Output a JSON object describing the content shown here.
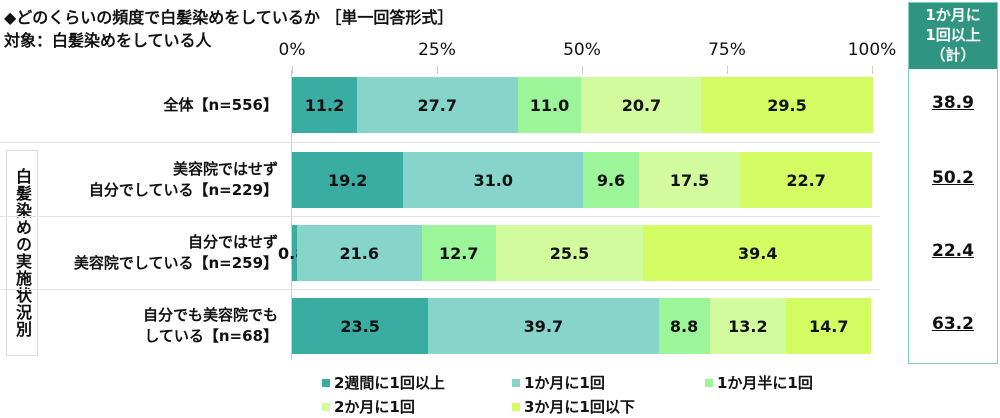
{
  "title": "◆どのくらいの頻度で白髪染めをしているか ［単一回答形式］",
  "subtitle": "対象：白髪染めをしている人",
  "group_label": "白髪染めの実施状況別",
  "summary": {
    "header_lines": [
      "1か月に",
      "1回以上",
      "（計）"
    ],
    "values": [
      "38.9",
      "50.2",
      "22.4",
      "63.2"
    ]
  },
  "chart_data": {
    "type": "bar",
    "orientation": "horizontal-stacked",
    "xlim": [
      0,
      100
    ],
    "tick_labels": [
      "0%",
      "25%",
      "50%",
      "75%",
      "100%"
    ],
    "categories": [
      [
        "全体【n=556】"
      ],
      [
        "美容院ではせず",
        "自分でしている【n=229】"
      ],
      [
        "自分ではせず",
        "美容院でしている【n=259】"
      ],
      [
        "自分でも美容院でも",
        "している【n=68】"
      ]
    ],
    "series": [
      {
        "name": "2週間に1回以上",
        "color": "#3aada3",
        "values": [
          11.2,
          19.2,
          0.8,
          23.5
        ]
      },
      {
        "name": "1か月に1回",
        "color": "#86d4ca",
        "values": [
          27.7,
          31.0,
          21.6,
          39.7
        ]
      },
      {
        "name": "1か月半に1回",
        "color": "#9df59a",
        "values": [
          11.0,
          9.6,
          12.7,
          8.8
        ]
      },
      {
        "name": "2か月に1回",
        "color": "#d2fb9e",
        "values": [
          20.7,
          17.5,
          25.5,
          13.2
        ]
      },
      {
        "name": "3か月に1回以下",
        "color": "#d3fb62",
        "values": [
          29.5,
          22.7,
          39.4,
          14.7
        ]
      }
    ],
    "legend": "bottom"
  }
}
